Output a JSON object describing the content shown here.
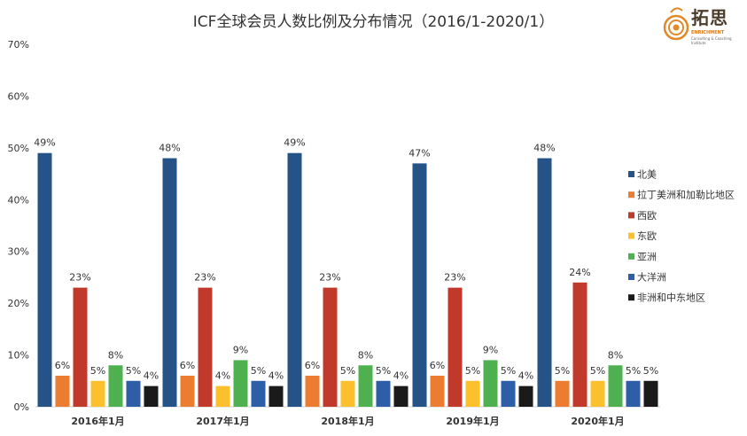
{
  "title": "ICF全球会员人数比例及分布情况（2016/1-2020/1）",
  "logo": {
    "name": "拓思",
    "brand": "ENRICHMENT",
    "tagline": "Consulting & Coaching Institute"
  },
  "colors": {
    "北美": "#255287",
    "拉丁美洲和加勒比地区": "#ec7c30",
    "西欧": "#c0392b",
    "东欧": "#fcc02c",
    "亚洲": "#4fb04f",
    "大洋洲": "#2e5ea8",
    "非洲和中东地区": "#1a1a1a"
  },
  "chart_data": {
    "type": "bar",
    "title": "ICF全球会员人数比例及分布情况（2016/1-2020/1）",
    "categories": [
      "2016年1月",
      "2017年1月",
      "2018年1月",
      "2019年1月",
      "2020年1月"
    ],
    "series": [
      {
        "name": "北美",
        "values": [
          49,
          48,
          49,
          47,
          48
        ]
      },
      {
        "name": "拉丁美洲和加勒比地区",
        "values": [
          6,
          6,
          6,
          6,
          5
        ]
      },
      {
        "name": "西欧",
        "values": [
          23,
          23,
          23,
          23,
          24
        ]
      },
      {
        "name": "东欧",
        "values": [
          5,
          4,
          5,
          5,
          5
        ]
      },
      {
        "name": "亚洲",
        "values": [
          8,
          9,
          8,
          9,
          8
        ]
      },
      {
        "name": "大洋洲",
        "values": [
          5,
          5,
          5,
          5,
          5
        ]
      },
      {
        "name": "非洲和中东地区",
        "values": [
          4,
          4,
          4,
          4,
          5
        ]
      }
    ],
    "data_labels": [
      [
        "49%",
        "6%",
        "23%",
        "5%",
        "8%",
        "5%",
        "4%"
      ],
      [
        "48%",
        "6%",
        "23%",
        "4%",
        "9%",
        "5%",
        "4%"
      ],
      [
        "49%",
        "6%",
        "23%",
        "5%",
        "8%",
        "5%",
        "4%"
      ],
      [
        "47%",
        "6%",
        "23%",
        "5%",
        "9%",
        "5%",
        "4%"
      ],
      [
        "48%",
        "5%",
        "24%",
        "5%",
        "8%",
        "5%",
        "5%"
      ]
    ],
    "y_ticks": [
      "0%",
      "10%",
      "20%",
      "30%",
      "40%",
      "50%",
      "60%",
      "70%"
    ],
    "ylim": [
      0,
      70
    ],
    "grid": false,
    "legend_position": "right"
  }
}
